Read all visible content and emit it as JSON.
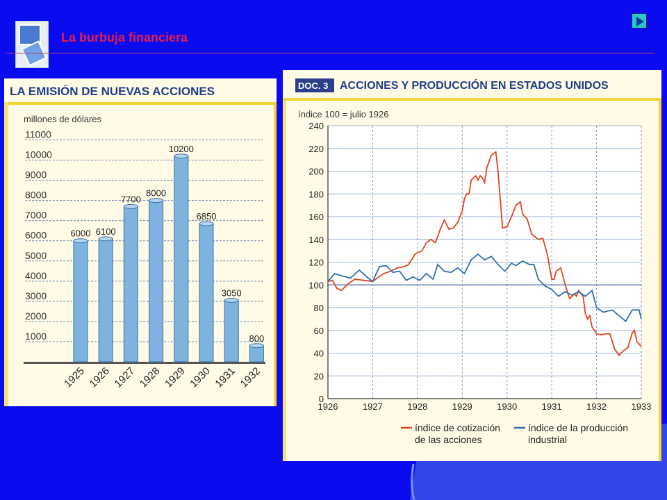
{
  "slide": {
    "title": "La burbuja financiera",
    "next_button_icon": "play-next-icon",
    "logo_icon": "presentation-logo-icon",
    "colors": {
      "background": "#0b0bf0",
      "title": "#e0204f",
      "accent": "#2cc5c9"
    }
  },
  "chart_data": [
    {
      "type": "bar",
      "title": "LA EMISIÓN DE NUEVAS ACCIONES",
      "ylabel": "millones de dólares",
      "xlabel": "",
      "categories": [
        "1925",
        "1926",
        "1927",
        "1928",
        "1929",
        "1930",
        "1931",
        "1932"
      ],
      "values": [
        6000,
        6100,
        7700,
        8000,
        10200,
        6850,
        3050,
        800
      ],
      "data_labels": [
        "6000",
        "6100",
        "7700",
        "8000",
        "10200",
        "6850",
        "3050",
        "800"
      ],
      "yticks": [
        "1000",
        "2000",
        "3000",
        "4000",
        "5000",
        "6000",
        "7000",
        "8000",
        "9000",
        "10000",
        "11000"
      ],
      "ylim": [
        0,
        11500
      ],
      "grid": true,
      "bar_color": "#7fb3df"
    },
    {
      "type": "line",
      "badge": "DOC. 3",
      "title": "ACCIONES Y PRODUCCIÓN EN ESTADOS UNIDOS",
      "ylabel": "índice 100 = julio 1926",
      "xlabel": "",
      "xticks": [
        "1926",
        "1927",
        "1928",
        "1929",
        "1930",
        "1931",
        "1932",
        "1933"
      ],
      "xlim": [
        1926,
        1933
      ],
      "yticks": [
        "0",
        "20",
        "40",
        "60",
        "80",
        "100",
        "120",
        "140",
        "160",
        "180",
        "200",
        "220",
        "240"
      ],
      "ylim": [
        0,
        240
      ],
      "grid": true,
      "reference_line": 100,
      "legend_position": "bottom",
      "series": [
        {
          "name": "índice de cotización de las acciones",
          "legend_line1": "índice de cotización",
          "legend_line2": "de las acciones",
          "color": "#e0451a",
          "x": [
            1926.0,
            1926.1,
            1926.2,
            1926.3,
            1926.45,
            1926.6,
            1926.8,
            1927.0,
            1927.1,
            1927.25,
            1927.4,
            1927.55,
            1927.7,
            1927.8,
            1927.95,
            1928.1,
            1928.2,
            1928.3,
            1928.4,
            1928.5,
            1928.6,
            1928.7,
            1928.8,
            1928.9,
            1929.0,
            1929.05,
            1929.1,
            1929.15,
            1929.2,
            1929.3,
            1929.35,
            1929.4,
            1929.45,
            1929.5,
            1929.55,
            1929.65,
            1929.75,
            1929.8,
            1929.9,
            1930.0,
            1930.1,
            1930.2,
            1930.3,
            1930.35,
            1930.45,
            1930.55,
            1930.6,
            1930.7,
            1930.8,
            1930.9,
            1931.0,
            1931.05,
            1931.1,
            1931.2,
            1931.3,
            1931.4,
            1931.5,
            1931.55,
            1931.6,
            1931.7,
            1931.75,
            1931.8,
            1931.85,
            1931.9,
            1932.0,
            1932.1,
            1932.2,
            1932.3,
            1932.4,
            1932.5,
            1932.6,
            1932.7,
            1932.8,
            1932.85,
            1932.9,
            1933.0
          ],
          "y": [
            103,
            104,
            97,
            95,
            101,
            105,
            104,
            103,
            106,
            110,
            112,
            115,
            116,
            118,
            127,
            130,
            137,
            140,
            137,
            148,
            157,
            149,
            150,
            155,
            165,
            176,
            180,
            180,
            192,
            196,
            192,
            196,
            194,
            190,
            203,
            214,
            217,
            200,
            150,
            151,
            160,
            170,
            173,
            162,
            158,
            145,
            143,
            140,
            141,
            127,
            105,
            105,
            112,
            115,
            100,
            88,
            92,
            90,
            95,
            90,
            75,
            70,
            73,
            63,
            57,
            56,
            57,
            57,
            44,
            38,
            42,
            45,
            58,
            60,
            50,
            46
          ]
        },
        {
          "name": "índice de la producción industrial",
          "legend_line1": "índice de la producción",
          "legend_line2": "industrial",
          "color": "#2e6fb0",
          "x": [
            1926.0,
            1926.15,
            1926.3,
            1926.5,
            1926.7,
            1926.9,
            1927.0,
            1927.15,
            1927.3,
            1927.45,
            1927.6,
            1927.75,
            1927.9,
            1928.05,
            1928.2,
            1928.35,
            1928.45,
            1928.6,
            1928.75,
            1928.9,
            1929.05,
            1929.2,
            1929.35,
            1929.5,
            1929.65,
            1929.8,
            1929.95,
            1930.1,
            1930.2,
            1930.35,
            1930.5,
            1930.6,
            1930.7,
            1930.85,
            1931.0,
            1931.15,
            1931.3,
            1931.45,
            1931.6,
            1931.75,
            1931.9,
            1932.0,
            1932.15,
            1932.35,
            1932.5,
            1932.65,
            1932.8,
            1932.95,
            1933.0
          ],
          "y": [
            103,
            110,
            108,
            106,
            113,
            106,
            103,
            116,
            117,
            111,
            112,
            104,
            107,
            104,
            110,
            105,
            118,
            112,
            111,
            115,
            110,
            122,
            127,
            122,
            125,
            118,
            112,
            119,
            117,
            121,
            118,
            118,
            105,
            99,
            96,
            90,
            94,
            91,
            94,
            90,
            95,
            80,
            76,
            78,
            73,
            68,
            78,
            78,
            70
          ]
        }
      ]
    }
  ]
}
